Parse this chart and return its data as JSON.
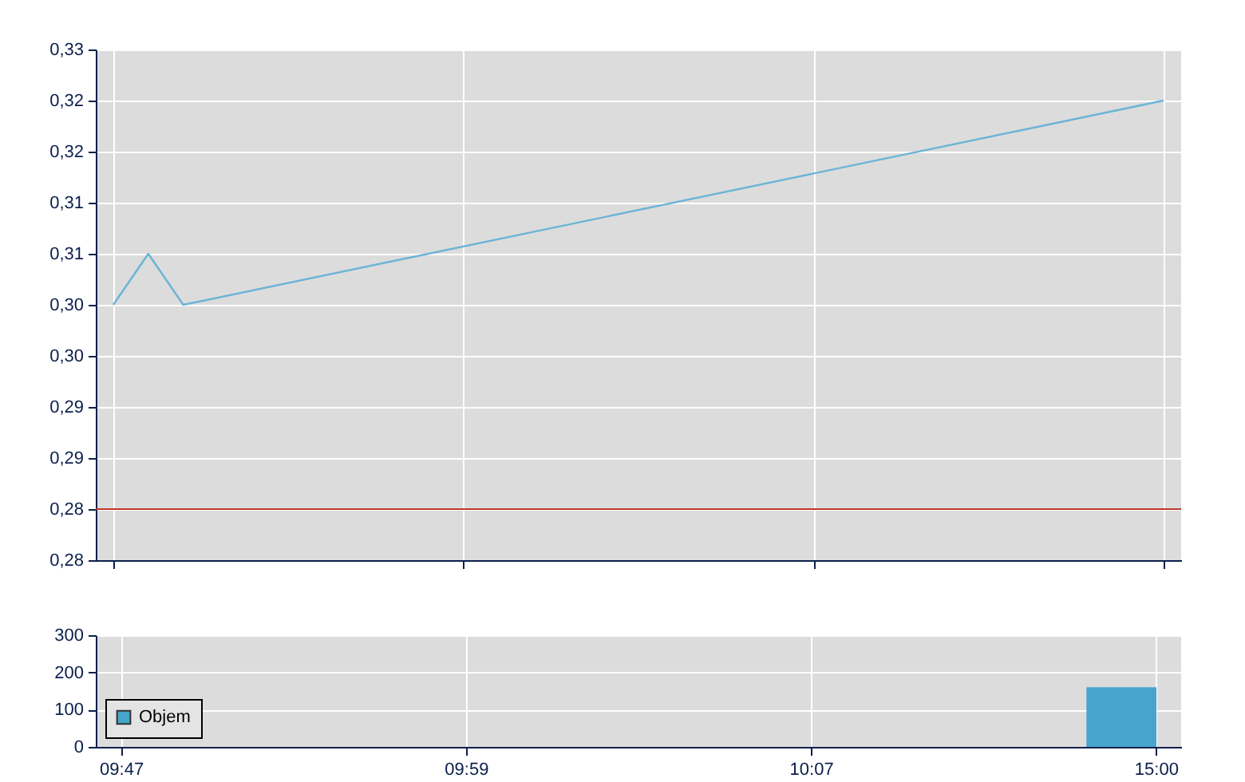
{
  "chart_data": [
    {
      "type": "line",
      "categories": [
        null,
        null,
        null,
        null,
        null,
        null,
        null,
        null,
        null,
        null,
        null,
        null,
        null,
        null,
        null,
        null,
        null,
        null,
        null,
        null,
        null,
        null,
        null,
        null,
        null,
        null,
        null,
        null,
        null,
        null,
        null
      ],
      "series": [
        {
          "color": "#6ab4d6",
          "values": [
            0.3,
            0.305,
            0.3,
            null,
            null,
            null,
            null,
            null,
            null,
            null,
            null,
            null,
            null,
            null,
            null,
            null,
            null,
            null,
            null,
            null,
            null,
            null,
            null,
            null,
            null,
            null,
            null,
            null,
            null,
            null,
            0.32
          ]
        }
      ],
      "ylim": [
        0.275,
        0.325
      ],
      "yticks": [
        {
          "value": 0.275,
          "label": "0,28"
        },
        {
          "value": 0.28,
          "label": "0,28"
        },
        {
          "value": 0.285,
          "label": "0,29"
        },
        {
          "value": 0.29,
          "label": "0,29"
        },
        {
          "value": 0.295,
          "label": "0,30"
        },
        {
          "value": 0.3,
          "label": "0,30"
        },
        {
          "value": 0.305,
          "label": "0,31"
        },
        {
          "value": 0.31,
          "label": "0,31"
        },
        {
          "value": 0.315,
          "label": "0,32"
        },
        {
          "value": 0.32,
          "label": "0,32"
        },
        {
          "value": 0.325,
          "label": "0,33"
        }
      ],
      "ref_lines": [
        {
          "axis": "y",
          "value": 0.28,
          "color": "#c0392b"
        }
      ],
      "grid": true,
      "tick_labels": "y"
    },
    {
      "type": "bar",
      "categories": [
        "09:47",
        null,
        null,
        null,
        null,
        null,
        null,
        null,
        null,
        null,
        "09:59",
        null,
        null,
        null,
        null,
        null,
        null,
        null,
        null,
        null,
        "10:07",
        null,
        null,
        null,
        null,
        null,
        null,
        null,
        null,
        null,
        "15:00"
      ],
      "series": [
        {
          "name": "Objem",
          "color": "#47a5cc",
          "values": [
            null,
            null,
            null,
            null,
            null,
            null,
            null,
            null,
            null,
            null,
            null,
            null,
            null,
            null,
            null,
            null,
            null,
            null,
            null,
            null,
            null,
            null,
            null,
            null,
            null,
            null,
            null,
            null,
            null,
            160,
            null
          ]
        }
      ],
      "ylim": [
        0,
        300
      ],
      "yticks": [
        0,
        100,
        200,
        300
      ],
      "grid": true,
      "legend": "left"
    }
  ]
}
